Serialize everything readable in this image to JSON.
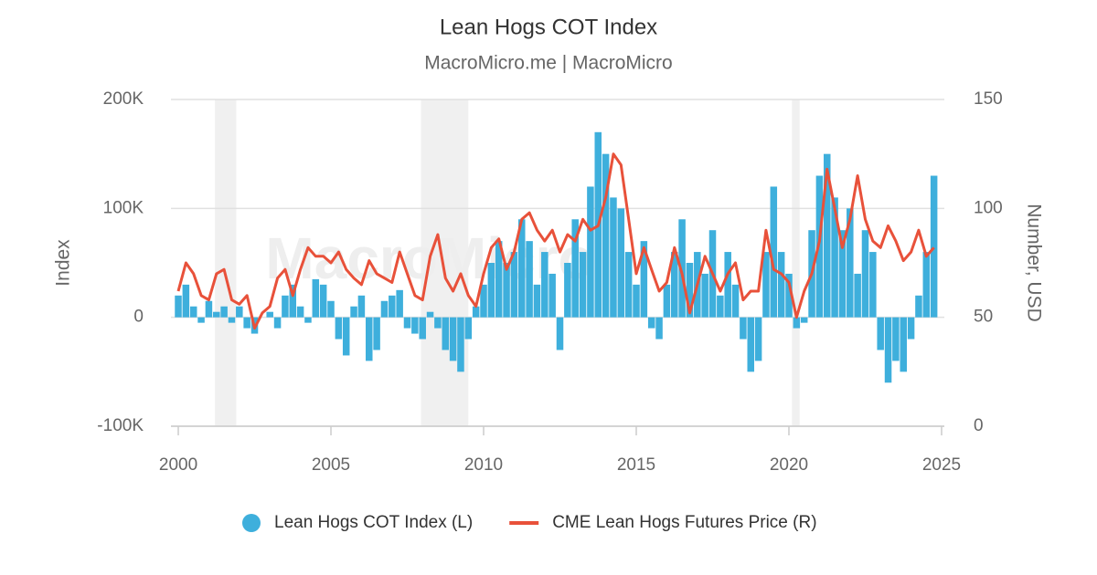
{
  "chart_data": {
    "type": "bar-line",
    "title": "Lean Hogs COT Index",
    "subtitle": "MacroMicro.me | MacroMicro",
    "watermark": "MacroMicro",
    "y_label": "Index",
    "y2_label": "Number, USD",
    "xlim": [
      1999.76,
      2025.09
    ],
    "xticks": [
      2000,
      2005,
      2010,
      2015,
      2020,
      2025
    ],
    "ylim": [
      -100000,
      200000
    ],
    "yticks": [
      {
        "value": -100000,
        "label": "-100K"
      },
      0,
      {
        "value": 100000,
        "label": "100K"
      },
      {
        "value": 200000,
        "label": "200K"
      }
    ],
    "y2lim": [
      0,
      150
    ],
    "y2ticks": [
      0,
      50,
      100,
      150
    ],
    "grid": true,
    "shaded_periods": [
      [
        2001.2,
        2001.9
      ],
      [
        2007.95,
        2009.5
      ],
      [
        2020.1,
        2020.35
      ]
    ],
    "x": [
      2000,
      2000.25,
      2000.5,
      2000.75,
      2001,
      2001.25,
      2001.5,
      2001.75,
      2002,
      2002.25,
      2002.5,
      2002.75,
      2003,
      2003.25,
      2003.5,
      2003.75,
      2004,
      2004.25,
      2004.5,
      2004.75,
      2005,
      2005.25,
      2005.5,
      2005.75,
      2006,
      2006.25,
      2006.5,
      2006.75,
      2007,
      2007.25,
      2007.5,
      2007.75,
      2008,
      2008.25,
      2008.5,
      2008.75,
      2009,
      2009.25,
      2009.5,
      2009.75,
      2010,
      2010.25,
      2010.5,
      2010.75,
      2011,
      2011.25,
      2011.5,
      2011.75,
      2012,
      2012.25,
      2012.5,
      2012.75,
      2013,
      2013.25,
      2013.5,
      2013.75,
      2014,
      2014.25,
      2014.5,
      2014.75,
      2015,
      2015.25,
      2015.5,
      2015.75,
      2016,
      2016.25,
      2016.5,
      2016.75,
      2017,
      2017.25,
      2017.5,
      2017.75,
      2018,
      2018.25,
      2018.5,
      2018.75,
      2019,
      2019.25,
      2019.5,
      2019.75,
      2020,
      2020.25,
      2020.5,
      2020.75,
      2021,
      2021.25,
      2021.5,
      2021.75,
      2022,
      2022.25,
      2022.5,
      2022.75,
      2023,
      2023.25,
      2023.5,
      2023.75,
      2024,
      2024.25,
      2024.5,
      2024.75
    ],
    "legend": "bottom",
    "series": [
      {
        "name": "Lean Hogs COT Index (L)",
        "type": "bar",
        "color": "#3eafdc",
        "axis": "y",
        "values": [
          20000,
          30000,
          10000,
          -5000,
          15000,
          5000,
          10000,
          -5000,
          10000,
          -10000,
          -15000,
          0,
          5000,
          -10000,
          20000,
          30000,
          10000,
          -5000,
          35000,
          30000,
          15000,
          -20000,
          -35000,
          10000,
          20000,
          -40000,
          -30000,
          15000,
          20000,
          25000,
          -10000,
          -15000,
          -20000,
          5000,
          -10000,
          -30000,
          -40000,
          -50000,
          -20000,
          10000,
          30000,
          50000,
          70000,
          50000,
          60000,
          90000,
          70000,
          30000,
          60000,
          40000,
          -30000,
          50000,
          90000,
          60000,
          120000,
          170000,
          150000,
          110000,
          100000,
          60000,
          30000,
          70000,
          -10000,
          -20000,
          30000,
          60000,
          90000,
          50000,
          60000,
          40000,
          80000,
          20000,
          60000,
          30000,
          -20000,
          -50000,
          -40000,
          60000,
          120000,
          60000,
          40000,
          -10000,
          -5000,
          80000,
          130000,
          150000,
          110000,
          80000,
          100000,
          40000,
          80000,
          60000,
          -30000,
          -60000,
          -40000,
          -50000,
          -20000,
          20000,
          60000,
          130000
        ]
      },
      {
        "name": "CME Lean Hogs Futures Price (R)",
        "type": "line",
        "color": "#e8513a",
        "axis": "y2",
        "values": [
          62,
          75,
          70,
          60,
          58,
          70,
          72,
          58,
          56,
          60,
          45,
          52,
          55,
          68,
          72,
          60,
          72,
          82,
          78,
          78,
          75,
          80,
          72,
          68,
          65,
          76,
          70,
          68,
          66,
          80,
          70,
          60,
          58,
          78,
          88,
          68,
          62,
          70,
          60,
          55,
          70,
          82,
          86,
          72,
          80,
          95,
          98,
          90,
          85,
          90,
          80,
          88,
          85,
          95,
          90,
          92,
          105,
          125,
          120,
          95,
          70,
          82,
          72,
          62,
          66,
          82,
          70,
          52,
          65,
          78,
          70,
          62,
          70,
          75,
          58,
          62,
          62,
          90,
          72,
          70,
          66,
          50,
          62,
          70,
          85,
          118,
          100,
          82,
          95,
          115,
          95,
          85,
          82,
          92,
          85,
          76,
          80,
          90,
          78,
          82
        ]
      }
    ]
  }
}
